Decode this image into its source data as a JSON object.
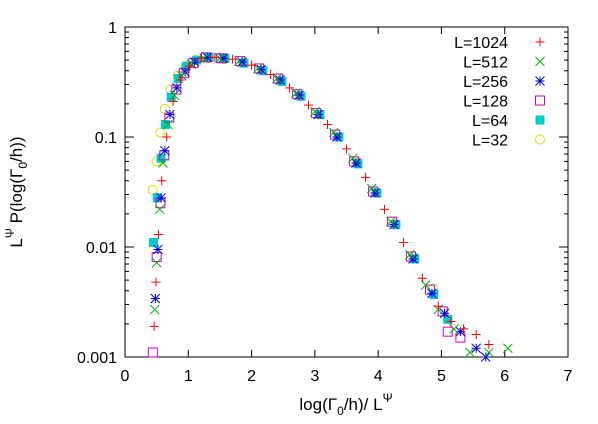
{
  "chart_data": {
    "type": "scatter",
    "title": "",
    "xlabel": "log(Γ₀/h)/ L^Ψ",
    "ylabel": "L^Ψ P(log(Γ₀/h))",
    "xlabel_parts": {
      "main": "log(Γ",
      "sub": "0",
      "mid": "/h)/ L",
      "sup": "Ψ"
    },
    "ylabel_parts": {
      "main": "L",
      "sup": "Ψ",
      "mid": " P(log(Γ",
      "sub": "0",
      "end": "/h))"
    },
    "x_scale": "linear",
    "y_scale": "log",
    "xlim": [
      0,
      7
    ],
    "ylim": [
      0.001,
      1
    ],
    "x_ticks": [
      {
        "v": 0,
        "label": "0"
      },
      {
        "v": 1,
        "label": "1"
      },
      {
        "v": 2,
        "label": "2"
      },
      {
        "v": 3,
        "label": "3"
      },
      {
        "v": 4,
        "label": "4"
      },
      {
        "v": 5,
        "label": "5"
      },
      {
        "v": 6,
        "label": "6"
      },
      {
        "v": 7,
        "label": "7"
      }
    ],
    "y_ticks": [
      {
        "v": 0.001,
        "label": "0.001"
      },
      {
        "v": 0.01,
        "label": "0.01"
      },
      {
        "v": 0.1,
        "label": "0.1"
      },
      {
        "v": 1,
        "label": "1"
      }
    ],
    "grid": false,
    "legend_position": "top-right",
    "series": [
      {
        "name": "L=1024",
        "marker": "plus",
        "color": "#ff0000",
        "points": [
          [
            0.46,
            0.0019
          ],
          [
            0.49,
            0.0048
          ],
          [
            0.53,
            0.013
          ],
          [
            0.58,
            0.04
          ],
          [
            0.66,
            0.1
          ],
          [
            0.76,
            0.21
          ],
          [
            0.88,
            0.33
          ],
          [
            1.02,
            0.44
          ],
          [
            1.2,
            0.52
          ],
          [
            1.42,
            0.53
          ],
          [
            1.7,
            0.51
          ],
          [
            2.0,
            0.45
          ],
          [
            2.3,
            0.37
          ],
          [
            2.6,
            0.28
          ],
          [
            2.9,
            0.195
          ],
          [
            3.2,
            0.13
          ],
          [
            3.5,
            0.078
          ],
          [
            3.8,
            0.043
          ],
          [
            4.1,
            0.022
          ],
          [
            4.4,
            0.011
          ],
          [
            4.7,
            0.0052
          ],
          [
            4.95,
            0.0029
          ],
          [
            5.15,
            0.0021
          ],
          [
            5.35,
            0.0018
          ],
          [
            5.55,
            0.0016
          ],
          [
            5.75,
            0.0013
          ]
        ]
      },
      {
        "name": "L=512",
        "marker": "cross",
        "color": "#00b000",
        "points": [
          [
            0.47,
            0.0027
          ],
          [
            0.5,
            0.0072
          ],
          [
            0.55,
            0.022
          ],
          [
            0.6,
            0.058
          ],
          [
            0.68,
            0.13
          ],
          [
            0.78,
            0.24
          ],
          [
            0.9,
            0.36
          ],
          [
            1.05,
            0.46
          ],
          [
            1.25,
            0.52
          ],
          [
            1.5,
            0.52
          ],
          [
            1.8,
            0.49
          ],
          [
            2.1,
            0.42
          ],
          [
            2.4,
            0.34
          ],
          [
            2.7,
            0.25
          ],
          [
            3.0,
            0.17
          ],
          [
            3.3,
            0.11
          ],
          [
            3.6,
            0.064
          ],
          [
            3.9,
            0.034
          ],
          [
            4.2,
            0.017
          ],
          [
            4.5,
            0.0085
          ],
          [
            4.75,
            0.0045
          ],
          [
            4.95,
            0.0027
          ],
          [
            5.2,
            0.0018
          ],
          [
            5.45,
            0.0011
          ],
          [
            5.75,
            0.0011
          ],
          [
            6.05,
            0.0012
          ]
        ]
      },
      {
        "name": "L=256",
        "marker": "star",
        "color": "#0000dd",
        "points": [
          [
            0.48,
            0.0034
          ],
          [
            0.52,
            0.0095
          ],
          [
            0.57,
            0.028
          ],
          [
            0.63,
            0.075
          ],
          [
            0.71,
            0.16
          ],
          [
            0.82,
            0.28
          ],
          [
            0.95,
            0.39
          ],
          [
            1.1,
            0.48
          ],
          [
            1.3,
            0.53
          ],
          [
            1.55,
            0.52
          ],
          [
            1.85,
            0.48
          ],
          [
            2.15,
            0.41
          ],
          [
            2.45,
            0.33
          ],
          [
            2.75,
            0.24
          ],
          [
            3.05,
            0.16
          ],
          [
            3.35,
            0.1
          ],
          [
            3.65,
            0.058
          ],
          [
            3.95,
            0.031
          ],
          [
            4.25,
            0.016
          ],
          [
            4.55,
            0.0078
          ],
          [
            4.85,
            0.0038
          ],
          [
            5.05,
            0.0025
          ],
          [
            5.3,
            0.0017
          ],
          [
            5.55,
            0.0012
          ],
          [
            5.7,
            0.001
          ]
        ]
      },
      {
        "name": "L=128",
        "marker": "square-open",
        "color": "#cc00cc",
        "points": [
          [
            0.44,
            0.0011
          ],
          [
            0.5,
            0.0081
          ],
          [
            0.56,
            0.025
          ],
          [
            0.62,
            0.068
          ],
          [
            0.7,
            0.15
          ],
          [
            0.81,
            0.27
          ],
          [
            0.93,
            0.38
          ],
          [
            1.08,
            0.47
          ],
          [
            1.28,
            0.53
          ],
          [
            1.52,
            0.52
          ],
          [
            1.82,
            0.49
          ],
          [
            2.12,
            0.42
          ],
          [
            2.42,
            0.34
          ],
          [
            2.72,
            0.245
          ],
          [
            3.02,
            0.165
          ],
          [
            3.32,
            0.105
          ],
          [
            3.62,
            0.06
          ],
          [
            3.92,
            0.032
          ],
          [
            4.22,
            0.017
          ],
          [
            4.52,
            0.0082
          ],
          [
            4.82,
            0.0041
          ],
          [
            5.02,
            0.0026
          ],
          [
            5.1,
            0.0017
          ],
          [
            5.3,
            0.0015
          ]
        ]
      },
      {
        "name": "L=64",
        "marker": "square-filled",
        "color": "#00cccc",
        "points": [
          [
            0.45,
            0.011
          ],
          [
            0.51,
            0.028
          ],
          [
            0.57,
            0.064
          ],
          [
            0.64,
            0.13
          ],
          [
            0.73,
            0.23
          ],
          [
            0.84,
            0.34
          ],
          [
            0.97,
            0.44
          ],
          [
            1.13,
            0.5
          ],
          [
            1.33,
            0.53
          ],
          [
            1.58,
            0.52
          ],
          [
            1.88,
            0.47
          ],
          [
            2.18,
            0.4
          ],
          [
            2.48,
            0.32
          ],
          [
            2.78,
            0.235
          ],
          [
            3.08,
            0.16
          ],
          [
            3.38,
            0.1
          ],
          [
            3.68,
            0.057
          ],
          [
            3.98,
            0.031
          ],
          [
            4.28,
            0.016
          ],
          [
            4.58,
            0.0078
          ],
          [
            4.88,
            0.0037
          ],
          [
            5.1,
            0.0022
          ]
        ]
      },
      {
        "name": "L=32",
        "marker": "circle-open",
        "color": "#dddd00",
        "points": [
          [
            0.44,
            0.033
          ],
          [
            0.5,
            0.06
          ],
          [
            0.56,
            0.11
          ],
          [
            0.63,
            0.18
          ],
          [
            0.72,
            0.27
          ],
          [
            0.83,
            0.36
          ],
          [
            0.96,
            0.44
          ],
          [
            1.12,
            0.5
          ],
          [
            1.32,
            0.52
          ],
          [
            1.57,
            0.51
          ],
          [
            1.87,
            0.47
          ],
          [
            2.17,
            0.4
          ],
          [
            2.47,
            0.32
          ],
          [
            2.77,
            0.235
          ],
          [
            3.07,
            0.16
          ],
          [
            3.37,
            0.1
          ],
          [
            3.67,
            0.058
          ],
          [
            3.97,
            0.031
          ],
          [
            4.27,
            0.016
          ],
          [
            4.57,
            0.0081
          ],
          [
            4.87,
            0.0042
          ]
        ]
      }
    ]
  }
}
